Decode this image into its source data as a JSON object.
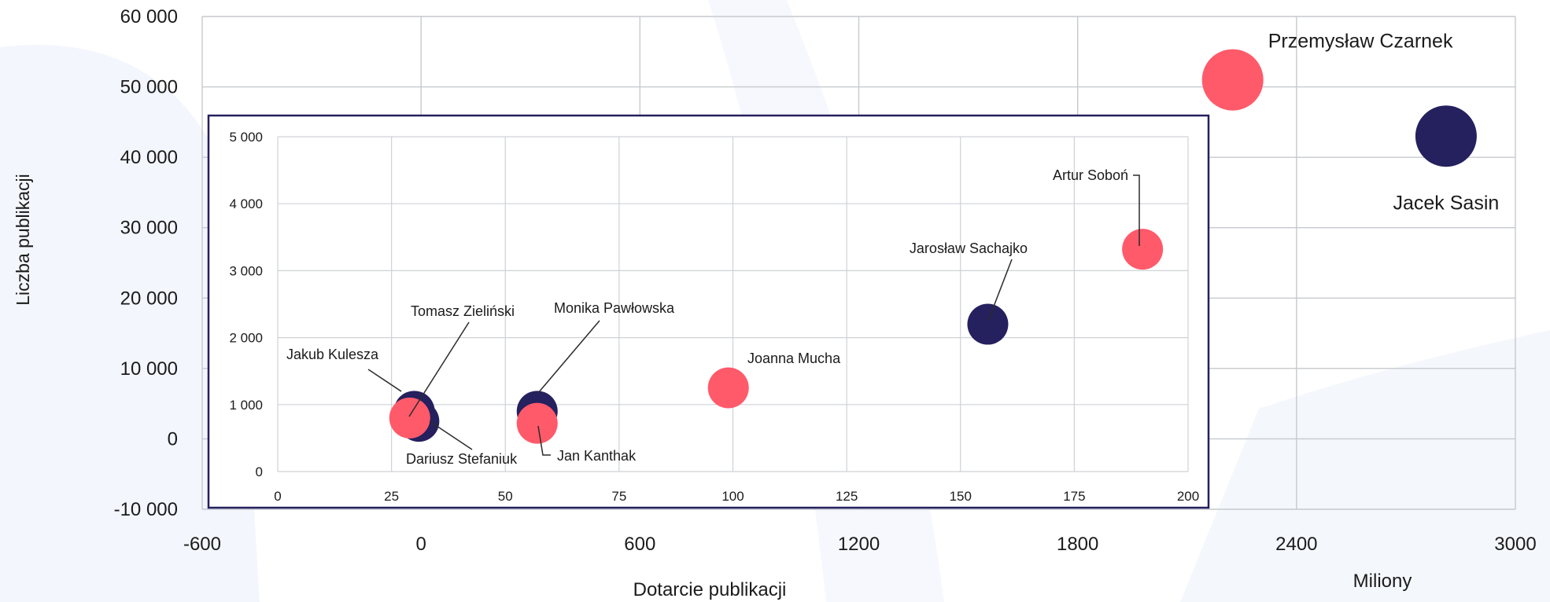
{
  "chart_data": [
    {
      "type": "scatter",
      "xlabel": "Dotarcie publikacji",
      "ylabel": "Liczba publikacji",
      "unit_label": "Miliony",
      "xlim": [
        -600,
        3000
      ],
      "ylim": [
        -10000,
        60000
      ],
      "x_ticks": [
        -600,
        0,
        600,
        1200,
        1800,
        2400,
        3000
      ],
      "x_tick_labels": [
        "-600",
        "0",
        "600",
        "1200",
        "1800",
        "2400",
        "3000"
      ],
      "y_ticks": [
        -10000,
        0,
        10000,
        20000,
        30000,
        40000,
        50000,
        60000
      ],
      "y_tick_labels": [
        "-10 000",
        "0",
        "10 000",
        "20 000",
        "30 000",
        "40 000",
        "50 000",
        "60 000"
      ],
      "grid": true,
      "colors": {
        "navy": "#25205e",
        "red": "#ff5a6a"
      },
      "points": [
        {
          "name": "Przemysław Czarnek",
          "x": 2225,
          "y": 51000,
          "color": "#ff5a6a"
        },
        {
          "name": "Jacek Sasin",
          "x": 2810,
          "y": 43000,
          "color": "#25205e"
        }
      ]
    },
    {
      "type": "scatter",
      "xlim": [
        0,
        200
      ],
      "ylim": [
        0,
        5000
      ],
      "x_ticks": [
        0,
        25,
        50,
        75,
        100,
        125,
        150,
        175,
        200
      ],
      "x_tick_labels": [
        "0",
        "25",
        "50",
        "75",
        "100",
        "125",
        "150",
        "175",
        "200"
      ],
      "y_ticks": [
        0,
        1000,
        2000,
        3000,
        4000,
        5000
      ],
      "y_tick_labels": [
        "0",
        "1 000",
        "2 000",
        "3 000",
        "4 000",
        "5 000"
      ],
      "grid": true,
      "points": [
        {
          "name": "Jakub Kulesza",
          "x": 30,
          "y": 900,
          "color": "#25205e"
        },
        {
          "name": "Dariusz Stefaniuk",
          "x": 31,
          "y": 750,
          "color": "#25205e"
        },
        {
          "name": "Tomasz Zieliński",
          "x": 29,
          "y": 800,
          "color": "#ff5a6a"
        },
        {
          "name": "Monika Pawłowska",
          "x": 57,
          "y": 900,
          "color": "#25205e"
        },
        {
          "name": "Jan Kanthak",
          "x": 57,
          "y": 720,
          "color": "#ff5a6a"
        },
        {
          "name": "Joanna Mucha",
          "x": 99,
          "y": 1250,
          "color": "#ff5a6a"
        },
        {
          "name": "Jarosław Sachajko",
          "x": 156,
          "y": 2200,
          "color": "#25205e"
        },
        {
          "name": "Artur Soboń",
          "x": 190,
          "y": 3320,
          "color": "#ff5a6a"
        }
      ]
    }
  ]
}
